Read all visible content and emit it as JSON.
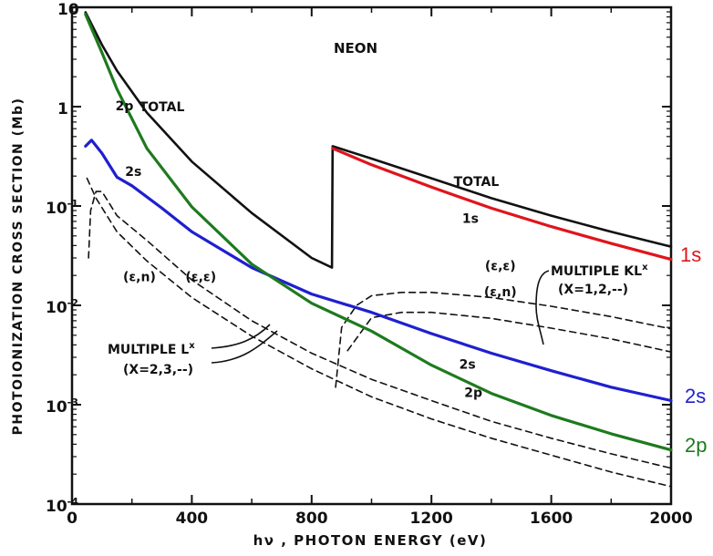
{
  "chart_data": {
    "type": "line",
    "title": "NEON",
    "xlabel": "hν , PHOTON ENERGY (eV)",
    "ylabel": "PHOTOIONIZATION CROSS SECTION (Mb)",
    "xlim": [
      0,
      2000
    ],
    "ylim": [
      0.0001,
      10
    ],
    "yscale": "log",
    "x_ticks": [
      "0",
      "400",
      "800",
      "1200",
      "1600",
      "2000"
    ],
    "y_ticks": [
      {
        "base": "10",
        "exp": "-4",
        "value": 0.0001
      },
      {
        "base": "10",
        "exp": "-3",
        "value": 0.001
      },
      {
        "base": "10",
        "exp": "-2",
        "value": 0.01
      },
      {
        "base": "10",
        "exp": "-1",
        "value": 0.1
      },
      {
        "base": "1",
        "exp": "",
        "value": 1
      },
      {
        "base": "10",
        "exp": "",
        "value": 10
      }
    ],
    "series": [
      {
        "name": "TOTAL",
        "style": "solid",
        "color": "#111111",
        "points": [
          [
            45,
            8.9
          ],
          [
            100,
            4.2
          ],
          [
            150,
            2.3
          ],
          [
            250,
            0.87
          ],
          [
            400,
            0.28
          ],
          [
            600,
            0.085
          ],
          [
            800,
            0.03
          ],
          [
            868,
            0.024
          ],
          [
            870,
            0.4
          ],
          [
            1000,
            0.3
          ],
          [
            1200,
            0.19
          ],
          [
            1400,
            0.12
          ],
          [
            1600,
            0.08
          ],
          [
            1800,
            0.055
          ],
          [
            2000,
            0.039
          ]
        ]
      },
      {
        "name": "1s",
        "style": "solid",
        "color": "#e0141c",
        "points": [
          [
            870,
            0.38
          ],
          [
            1000,
            0.26
          ],
          [
            1200,
            0.155
          ],
          [
            1400,
            0.095
          ],
          [
            1600,
            0.062
          ],
          [
            1800,
            0.042
          ],
          [
            2000,
            0.029
          ]
        ]
      },
      {
        "name": "2s",
        "style": "solid",
        "color": "#1f1fd0",
        "points": [
          [
            45,
            0.4
          ],
          [
            65,
            0.46
          ],
          [
            100,
            0.34
          ],
          [
            150,
            0.195
          ],
          [
            200,
            0.16
          ],
          [
            300,
            0.095
          ],
          [
            400,
            0.055
          ],
          [
            600,
            0.024
          ],
          [
            800,
            0.013
          ],
          [
            1000,
            0.0085
          ],
          [
            1200,
            0.0052
          ],
          [
            1400,
            0.0033
          ],
          [
            1600,
            0.0022
          ],
          [
            1800,
            0.0015
          ],
          [
            2000,
            0.0011
          ]
        ]
      },
      {
        "name": "2p",
        "style": "solid",
        "color": "#1e7a1e",
        "points": [
          [
            45,
            8.5
          ],
          [
            100,
            3.5
          ],
          [
            150,
            1.5
          ],
          [
            250,
            0.38
          ],
          [
            400,
            0.098
          ],
          [
            600,
            0.026
          ],
          [
            800,
            0.0105
          ],
          [
            1000,
            0.0055
          ],
          [
            1200,
            0.0025
          ],
          [
            1400,
            0.0013
          ],
          [
            1600,
            0.00078
          ],
          [
            1800,
            0.00051
          ],
          [
            2000,
            0.00035
          ]
        ]
      },
      {
        "name": "(ε,n)",
        "style": "dashed",
        "color": "#111111",
        "points": [
          [
            55,
            0.03
          ],
          [
            62,
            0.09
          ],
          [
            80,
            0.14
          ],
          [
            100,
            0.14
          ],
          [
            150,
            0.08
          ],
          [
            250,
            0.045
          ],
          [
            400,
            0.018
          ],
          [
            600,
            0.007
          ],
          [
            800,
            0.0033
          ],
          [
            1000,
            0.0018
          ],
          [
            1200,
            0.0011
          ],
          [
            1400,
            0.00068
          ],
          [
            1600,
            0.00046
          ],
          [
            1800,
            0.00032
          ],
          [
            2000,
            0.00023
          ]
        ]
      },
      {
        "name": "(ε,ε)",
        "style": "dashed",
        "color": "#111111",
        "points": [
          [
            50,
            0.19
          ],
          [
            80,
            0.12
          ],
          [
            150,
            0.055
          ],
          [
            250,
            0.028
          ],
          [
            400,
            0.012
          ],
          [
            600,
            0.0049
          ],
          [
            800,
            0.0023
          ],
          [
            1000,
            0.0012
          ],
          [
            1200,
            0.00072
          ],
          [
            1400,
            0.00046
          ],
          [
            1600,
            0.00031
          ],
          [
            1800,
            0.00021
          ],
          [
            2000,
            0.00015
          ]
        ]
      },
      {
        "name": "MULTIPLE KL (ε,ε)",
        "style": "dashed",
        "color": "#111111",
        "points": [
          [
            880,
            0.0015
          ],
          [
            900,
            0.006
          ],
          [
            950,
            0.01
          ],
          [
            1000,
            0.0125
          ],
          [
            1100,
            0.0135
          ],
          [
            1200,
            0.0135
          ],
          [
            1400,
            0.012
          ],
          [
            1600,
            0.0098
          ],
          [
            1800,
            0.0077
          ],
          [
            2000,
            0.0058
          ]
        ]
      },
      {
        "name": "MULTIPLE KL (ε,n)",
        "style": "dashed",
        "color": "#111111",
        "points": [
          [
            920,
            0.0035
          ],
          [
            1000,
            0.0075
          ],
          [
            1100,
            0.0085
          ],
          [
            1200,
            0.0085
          ],
          [
            1400,
            0.0074
          ],
          [
            1600,
            0.0059
          ],
          [
            1800,
            0.0046
          ],
          [
            2000,
            0.0034
          ]
        ]
      }
    ],
    "curve_labels": [
      {
        "text": "TOTAL",
        "x": 300,
        "y": 0.9
      },
      {
        "text": "2p",
        "x": 175,
        "y": 0.92
      },
      {
        "text": "2s",
        "x": 205,
        "y": 0.2
      },
      {
        "text": "TOTAL",
        "x": 1350,
        "y": 0.16
      },
      {
        "text": "1s",
        "x": 1330,
        "y": 0.068
      },
      {
        "text": "(ε,n)",
        "x": 225,
        "y": 0.0175
      },
      {
        "text": "(ε,ε)",
        "x": 430,
        "y": 0.0175
      },
      {
        "text": "(ε,ε)",
        "x": 1430,
        "y": 0.0225
      },
      {
        "text": "(ε,n)",
        "x": 1430,
        "y": 0.0124
      },
      {
        "text": "2s",
        "x": 1320,
        "y": 0.0023
      },
      {
        "text": "2p",
        "x": 1340,
        "y": 0.0012
      }
    ],
    "annotations": {
      "multiple_l": {
        "line1": "MULTIPLE L",
        "sup": "x",
        "line2": "(X=2,3,--)"
      },
      "multiple_kl": {
        "line1": "MULTIPLE KL",
        "sup": "x",
        "line2": "(X=1,2,--)"
      }
    },
    "side_labels": [
      {
        "text": "1s",
        "color": "#e0141c"
      },
      {
        "text": "2s",
        "color": "#1f1fd0"
      },
      {
        "text": "2p",
        "color": "#1e7a1e"
      }
    ],
    "grid": false
  }
}
